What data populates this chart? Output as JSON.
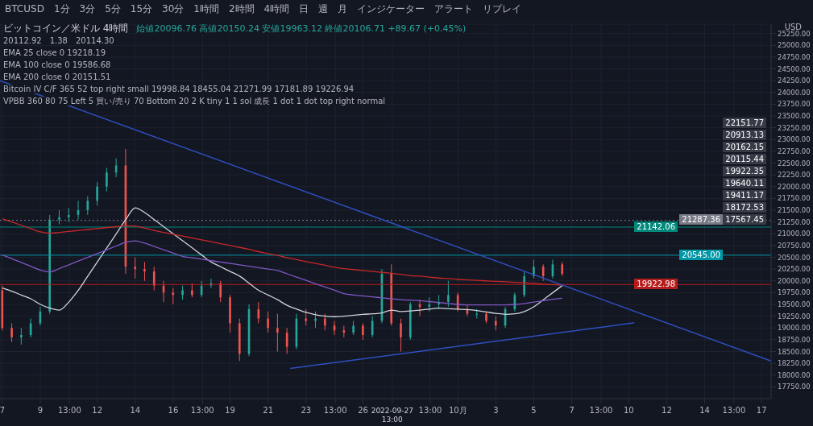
{
  "chart_data": {
    "type": "candlestick",
    "title": "ビットコイン／米ドル 4時間",
    "subtitle": "始値20096.76 高値20150.24 安値19963.12 終値20106.71 +89.67 (+0.45%)",
    "annotations": [
      "BTCUSD　1分　3分　5分　15分　30分　1時間　2時間　4時間　日　週　月　インジケーター　アラート　リプレイ",
      "20112.92　1.38　20114.30",
      "EMA 25 close 0 19218.19",
      "EMA 100 close 0 19586.68",
      "EMA 200 close 0 20151.51",
      "Bitcoin IV C/F 365 52 top right small 19998.84 18455.04 21271.99 17181.89 19226.94",
      "VPBB 360 80 75 Left 5 買い/売り 70 Bottom 20 2 K tiny 1 1 sol 成長 1 dot 1 dot top right normal",
      "USD",
      "22151.77",
      "20913.13",
      "20162.15",
      "20115.44",
      "19922.35",
      "19640.11",
      "19411.17",
      "18172.53",
      "17567.45"
    ],
    "x": [
      "2022-09-07T00:00",
      "2022-09-07T12:00",
      "2022-09-08T00:00",
      "2022-09-08T12:00",
      "2022-09-09T00:00",
      "2022-09-09T12:00",
      "2022-09-10T00:00",
      "2022-09-10T12:00",
      "2022-09-11T00:00",
      "2022-09-11T12:00",
      "2022-09-12T00:00",
      "2022-09-12T12:00",
      "2022-09-13T00:00",
      "2022-09-13T12:00",
      "2022-09-14T00:00",
      "2022-09-14T12:00",
      "2022-09-15T00:00",
      "2022-09-15T12:00",
      "2022-09-16T00:00",
      "2022-09-16T12:00",
      "2022-09-17T00:00",
      "2022-09-17T12:00",
      "2022-09-18T00:00",
      "2022-09-18T12:00",
      "2022-09-19T00:00",
      "2022-09-19T12:00",
      "2022-09-20T00:00",
      "2022-09-20T12:00",
      "2022-09-21T00:00",
      "2022-09-21T12:00",
      "2022-09-22T00:00",
      "2022-09-22T12:00",
      "2022-09-23T00:00",
      "2022-09-23T12:00",
      "2022-09-24T00:00",
      "2022-09-24T12:00",
      "2022-09-25T00:00",
      "2022-09-25T12:00",
      "2022-09-26T00:00",
      "2022-09-26T12:00",
      "2022-09-27T00:00",
      "2022-09-27T12:00",
      "2022-09-28T00:00",
      "2022-09-28T12:00",
      "2022-09-29T00:00",
      "2022-09-29T12:00",
      "2022-09-30T00:00",
      "2022-09-30T12:00",
      "2022-10-01T00:00",
      "2022-10-01T12:00",
      "2022-10-02T00:00",
      "2022-10-02T12:00",
      "2022-10-03T00:00",
      "2022-10-03T12:00",
      "2022-10-04T00:00",
      "2022-10-04T12:00",
      "2022-10-05T00:00",
      "2022-10-05T12:00",
      "2022-10-06T00:00",
      "2022-10-06T12:00"
    ],
    "ohlc": [
      [
        19800,
        19900,
        18950,
        19000
      ],
      [
        19000,
        19100,
        18700,
        18800
      ],
      [
        18800,
        19000,
        18650,
        18850
      ],
      [
        18850,
        19200,
        18800,
        19100
      ],
      [
        19100,
        19450,
        19050,
        19350
      ],
      [
        19350,
        21400,
        19300,
        21300
      ],
      [
        21300,
        21500,
        21200,
        21350
      ],
      [
        21350,
        21550,
        21250,
        21400
      ],
      [
        21400,
        21700,
        21300,
        21500
      ],
      [
        21500,
        21800,
        21400,
        21700
      ],
      [
        21700,
        22100,
        21600,
        22000
      ],
      [
        22000,
        22400,
        21900,
        22300
      ],
      [
        22300,
        22600,
        22200,
        22450
      ],
      [
        22450,
        22800,
        20150,
        20300
      ],
      [
        20300,
        20500,
        20050,
        20250
      ],
      [
        20250,
        20400,
        20000,
        20200
      ],
      [
        20200,
        20300,
        19800,
        19900
      ],
      [
        19900,
        20000,
        19550,
        19750
      ],
      [
        19750,
        19850,
        19500,
        19700
      ],
      [
        19700,
        19900,
        19600,
        19800
      ],
      [
        19800,
        19950,
        19650,
        19700
      ],
      [
        19700,
        20000,
        19650,
        19900
      ],
      [
        19900,
        20050,
        19850,
        19950
      ],
      [
        19950,
        20000,
        19550,
        19650
      ],
      [
        19650,
        19700,
        18900,
        19100
      ],
      [
        19100,
        19200,
        18300,
        18450
      ],
      [
        18450,
        19500,
        18400,
        19400
      ],
      [
        19400,
        19550,
        19100,
        19200
      ],
      [
        19200,
        19350,
        18900,
        19000
      ],
      [
        19000,
        19300,
        18500,
        18900
      ],
      [
        18900,
        19000,
        18450,
        18600
      ],
      [
        18600,
        19300,
        18550,
        19200
      ],
      [
        19200,
        19400,
        19050,
        19150
      ],
      [
        19150,
        19350,
        19000,
        19200
      ],
      [
        19200,
        19300,
        18950,
        19050
      ],
      [
        19050,
        19150,
        18850,
        18950
      ],
      [
        18950,
        19050,
        18800,
        18900
      ],
      [
        18900,
        19150,
        18850,
        19050
      ],
      [
        19050,
        19100,
        18750,
        18850
      ],
      [
        18850,
        19250,
        18800,
        19150
      ],
      [
        19150,
        20250,
        19100,
        20150
      ],
      [
        20150,
        20350,
        19050,
        19100
      ],
      [
        19100,
        19200,
        18500,
        18800
      ],
      [
        18800,
        19550,
        18750,
        19500
      ],
      [
        19500,
        19600,
        19250,
        19450
      ],
      [
        19450,
        19650,
        19350,
        19500
      ],
      [
        19500,
        19700,
        19400,
        19550
      ],
      [
        19550,
        20000,
        19450,
        19700
      ],
      [
        19700,
        19750,
        19350,
        19400
      ],
      [
        19400,
        19500,
        19250,
        19300
      ],
      [
        19300,
        19400,
        19200,
        19300
      ],
      [
        19300,
        19350,
        19100,
        19150
      ],
      [
        19150,
        19250,
        18950,
        19050
      ],
      [
        19050,
        19450,
        19000,
        19400
      ],
      [
        19400,
        19750,
        19350,
        19700
      ],
      [
        19700,
        20200,
        19650,
        20100
      ],
      [
        20100,
        20450,
        20050,
        20300
      ],
      [
        20300,
        20350,
        20000,
        20100
      ],
      [
        20100,
        20450,
        20050,
        20350
      ],
      [
        20350,
        20400,
        20100,
        20150
      ]
    ],
    "colors": [
      "#ef5350",
      "#ef5350",
      "#26a69a",
      "#26a69a",
      "#26a69a",
      "#26a69a",
      "#26a69a",
      "#26a69a",
      "#26a69a",
      "#26a69a",
      "#26a69a",
      "#26a69a",
      "#26a69a",
      "#ef5350",
      "#ef5350",
      "#ef5350",
      "#ef5350",
      "#ef5350",
      "#ef5350",
      "#26a69a",
      "#ef5350",
      "#26a69a",
      "#26a69a",
      "#ef5350",
      "#ef5350",
      "#ef5350",
      "#26a69a",
      "#ef5350",
      "#ef5350",
      "#ef5350",
      "#ef5350",
      "#26a69a",
      "#ef5350",
      "#26a69a",
      "#ef5350",
      "#ef5350",
      "#ef5350",
      "#26a69a",
      "#ef5350",
      "#26a69a",
      "#26a69a",
      "#ef5350",
      "#ef5350",
      "#26a69a",
      "#ef5350",
      "#26a69a",
      "#26a69a",
      "#26a69a",
      "#ef5350",
      "#ef5350",
      "#26a69a",
      "#ef5350",
      "#ef5350",
      "#26a69a",
      "#26a69a",
      "#26a69a",
      "#26a69a",
      "#ef5350",
      "#26a69a",
      "#ef5350"
    ],
    "series": [
      {
        "type": "line",
        "color": "#d1d4dc",
        "values": [
          19850,
          19780,
          19700,
          19620,
          19500,
          19420,
          19380,
          19550,
          19800,
          20100,
          20400,
          20700,
          21000,
          21300,
          21550,
          21450,
          21300,
          21150,
          21000,
          20850,
          20700,
          20550,
          20400,
          20300,
          20200,
          20100,
          19950,
          19800,
          19700,
          19600,
          19480,
          19400,
          19330,
          19280,
          19250,
          19240,
          19250,
          19270,
          19290,
          19300,
          19320,
          19380,
          19350,
          19360,
          19380,
          19400,
          19420,
          19410,
          19400,
          19390,
          19370,
          19340,
          19310,
          19290,
          19300,
          19350,
          19450,
          19600,
          19750,
          19900
        ]
      },
      {
        "type": "line",
        "color": "#7e57c2",
        "values": [
          20550,
          20470,
          20390,
          20310,
          20230,
          20190,
          20260,
          20340,
          20420,
          20500,
          20580,
          20660,
          20740,
          20820,
          20850,
          20800,
          20730,
          20660,
          20590,
          20520,
          20490,
          20460,
          20430,
          20400,
          20370,
          20340,
          20310,
          20280,
          20250,
          20220,
          20150,
          20080,
          20010,
          19940,
          19870,
          19800,
          19730,
          19700,
          19680,
          19660,
          19640,
          19620,
          19600,
          19590,
          19580,
          19560,
          19540,
          19520,
          19500,
          19490,
          19490,
          19490,
          19490,
          19490,
          19500,
          19520,
          19550,
          19580,
          19610,
          19630
        ]
      },
      {
        "type": "line",
        "color": "#c62828",
        "values": [
          21320,
          21250,
          21180,
          21110,
          21040,
          21010,
          21030,
          21050,
          21070,
          21090,
          21110,
          21130,
          21150,
          21170,
          21160,
          21120,
          21070,
          21030,
          20990,
          20950,
          20910,
          20870,
          20830,
          20790,
          20750,
          20710,
          20670,
          20620,
          20580,
          20540,
          20490,
          20450,
          20410,
          20370,
          20330,
          20290,
          20260,
          20240,
          20220,
          20200,
          20180,
          20160,
          20140,
          20110,
          20100,
          20080,
          20060,
          20050,
          20030,
          20020,
          20010,
          20000,
          19990,
          19980,
          19970,
          19960,
          19950,
          19930,
          19920,
          19910
        ]
      },
      {
        "type": "line",
        "color": "#2f4fc2",
        "x": [
          "2022-09-06T21:00",
          "2022-10-17T12:00"
        ],
        "values": [
          24250,
          18300
        ]
      },
      {
        "type": "line",
        "color": "#2f4fc2",
        "x": [
          "2022-09-22T04:00",
          "2022-10-10T07:00"
        ],
        "values": [
          18140,
          19110
        ]
      }
    ],
    "marker": "none",
    "xlim": [
      "2022-09-06T21:00",
      "2022-10-17T12:00"
    ],
    "xticks": [
      {
        "value": "2022-09-07",
        "label": "7"
      },
      {
        "value": "2022-09-09",
        "label": "9"
      },
      {
        "value": "2022-09-10T13:00",
        "label": "13:00"
      },
      {
        "value": "2022-09-12",
        "label": "12"
      },
      {
        "value": "2022-09-14",
        "label": "14"
      },
      {
        "value": "2022-09-16",
        "label": "16"
      },
      {
        "value": "2022-09-17T13:00",
        "label": "13:00"
      },
      {
        "value": "2022-09-19",
        "label": "19"
      },
      {
        "value": "2022-09-21",
        "label": "21"
      },
      {
        "value": "2022-09-23",
        "label": "23"
      },
      {
        "value": "2022-09-24T13:00",
        "label": "13:00"
      },
      {
        "value": "2022-09-26",
        "label": "26"
      },
      {
        "value": "2022-09-27T13:00",
        "label": "2022-09-27 13:00"
      },
      {
        "value": "2022-09-29T13:00",
        "label": "13:00"
      },
      {
        "value": "2022-10-01",
        "label": "10月"
      },
      {
        "value": "2022-10-03",
        "label": "3"
      },
      {
        "value": "2022-10-05",
        "label": "5"
      },
      {
        "value": "2022-10-07",
        "label": "7"
      },
      {
        "value": "2022-10-08T13:00",
        "label": "13:00"
      },
      {
        "value": "2022-10-10",
        "label": "10"
      },
      {
        "value": "2022-10-12",
        "label": "12"
      },
      {
        "value": "2022-10-14",
        "label": "14"
      },
      {
        "value": "2022-10-15T13:00",
        "label": "13:00"
      },
      {
        "value": "2022-10-17",
        "label": "17"
      }
    ],
    "ylim": [
      17500,
      25450
    ],
    "yticks": [
      {
        "value": 17750,
        "label": "17750.00"
      },
      {
        "value": 18000,
        "label": "18000.00"
      },
      {
        "value": 18250,
        "label": "18250.00"
      },
      {
        "value": 18500,
        "label": "18500.00"
      },
      {
        "value": 18750,
        "label": "18750.00"
      },
      {
        "value": 19000,
        "label": "19000.00"
      },
      {
        "value": 19250,
        "label": "19250.00"
      },
      {
        "value": 19500,
        "label": "19500.00"
      },
      {
        "value": 19750,
        "label": "19750.00"
      },
      {
        "value": 20000,
        "label": "20000.00"
      },
      {
        "value": 20250,
        "label": "20250.00"
      },
      {
        "value": 20500,
        "label": "20500.00"
      },
      {
        "value": 20750,
        "label": "20750.00"
      },
      {
        "value": 21000,
        "label": "21000.00"
      },
      {
        "value": 21250,
        "label": "21250.00"
      },
      {
        "value": 21500,
        "label": "21500.00"
      },
      {
        "value": 21750,
        "label": "21750.00"
      },
      {
        "value": 22000,
        "label": "22000.00"
      },
      {
        "value": 22250,
        "label": "22250.00"
      },
      {
        "value": 22500,
        "label": "22500.00"
      },
      {
        "value": 22750,
        "label": "22750.00"
      },
      {
        "value": 23000,
        "label": "23000.00"
      },
      {
        "value": 23250,
        "label": "23250.00"
      },
      {
        "value": 23500,
        "label": "23500.00"
      },
      {
        "value": 23750,
        "label": "23750.00"
      },
      {
        "value": 24000,
        "label": "24000.00"
      },
      {
        "value": 24250,
        "label": "24250.00"
      },
      {
        "value": 24500,
        "label": "24500.00"
      },
      {
        "value": 24750,
        "label": "24750.00"
      },
      {
        "value": 25000,
        "label": "25000.00"
      },
      {
        "value": 25250,
        "label": "25250.00"
      }
    ],
    "grid": true,
    "ref_lines": [
      {
        "axis": "y",
        "value": 21287.36,
        "label": "21287.36",
        "color": "#787b86",
        "line_style": "dotted"
      },
      {
        "axis": "y",
        "value": 21142.06,
        "label": "21142.06",
        "color": "#00897b",
        "line_style": "solid"
      },
      {
        "axis": "y",
        "value": 20545.0,
        "label": "20545.00",
        "color": "#0097a7",
        "line_style": "solid"
      },
      {
        "axis": "y",
        "value": 19922.98,
        "label": "19922.98",
        "color": "#b71c1c",
        "line_style": "solid"
      }
    ]
  }
}
